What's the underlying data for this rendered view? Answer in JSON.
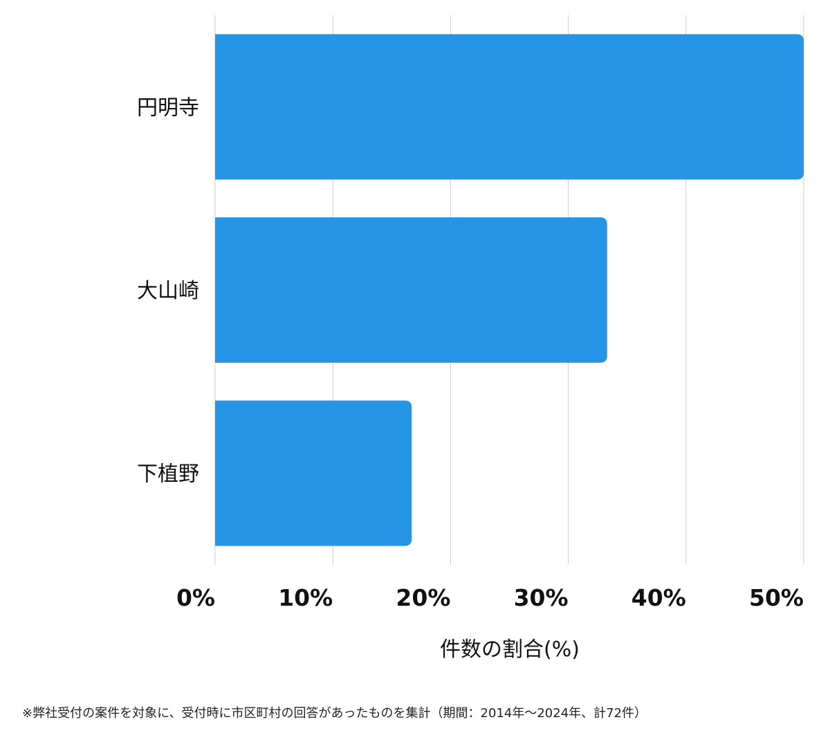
{
  "chart_data": {
    "type": "bar",
    "orientation": "horizontal",
    "categories": [
      "円明寺",
      "大山崎",
      "下植野"
    ],
    "values": [
      50,
      33.3,
      16.7
    ],
    "xlim": [
      0,
      50
    ],
    "x_ticks": [
      "0%",
      "10%",
      "20%",
      "30%",
      "40%",
      "50%"
    ],
    "xlabel": "件数の割合(%)",
    "grid": true,
    "bar_color": "#2695e6",
    "grid_color": "#cccccc"
  },
  "footnote": "※弊社受付の案件を対象に、受付時に市区町村の回答があったものを集計（期間：2014年～2024年、計72件）"
}
